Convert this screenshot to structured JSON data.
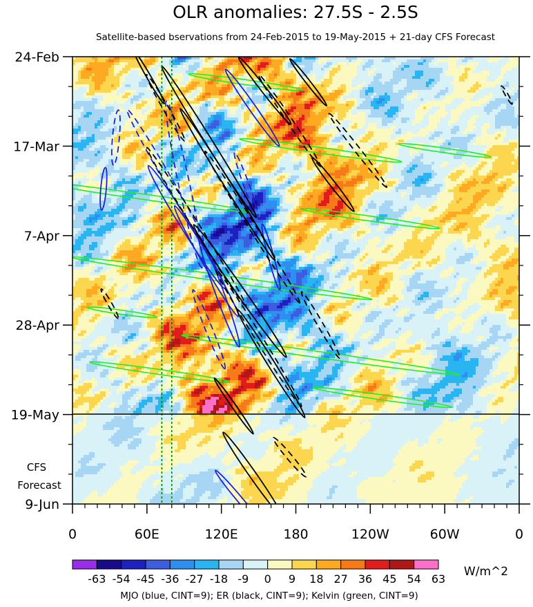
{
  "chart_data": {
    "type": "heatmap",
    "title": "OLR anomalies: 27.5S - 2.5S",
    "subtitle": "Satellite-based bservations from 24-Feb-2015 to 19-May-2015 + 21-day CFS Forecast",
    "x_tick_labels": [
      "0",
      "60E",
      "120E",
      "180",
      "120W",
      "60W",
      "0"
    ],
    "x_tick_lons": [
      0,
      60,
      120,
      180,
      240,
      300,
      360
    ],
    "xlim": [
      0,
      360
    ],
    "y_tick_labels": [
      "24-Feb",
      "17-Mar",
      "7-Apr",
      "28-Apr",
      "19-May",
      "9-Jun"
    ],
    "y_tick_days": [
      0,
      21,
      42,
      63,
      84,
      105
    ],
    "ylim": [
      0,
      105
    ],
    "observation_end_label": "19-May",
    "observation_end_day": 84,
    "forecast_label_line1": "CFS",
    "forecast_label_line2": "Forecast",
    "colorbar_levels": [
      -63,
      -54,
      -45,
      -36,
      -27,
      -18,
      -9,
      0,
      9,
      18,
      27,
      36,
      45,
      54,
      63
    ],
    "colorbar_labels": [
      "-63",
      "-54",
      "-45",
      "-36",
      "-27",
      "-18",
      "-9",
      "0",
      "9",
      "18",
      "27",
      "36",
      "45",
      "54",
      "63"
    ],
    "colorbar_colors": [
      "#9a2ee8",
      "#1a0a8c",
      "#1b22bf",
      "#3c5ddd",
      "#2e8ff0",
      "#29b5f2",
      "#a7d6f5",
      "#d9f2f8",
      "#fbf8c0",
      "#fdd64f",
      "#fdaa22",
      "#f77a1a",
      "#e21c1c",
      "#b01818",
      "#ff6fc8"
    ],
    "units": "W/m^2",
    "caption": "MJO (blue, CINT=9); ER (black, CINT=9); Kelvin (green, CINT=9)",
    "reference_lon_lines": [
      72,
      80
    ],
    "contour_colors": {
      "mjo": "#2020d0",
      "er": "#000000",
      "kelvin": "#22ee22",
      "reference": "#008000"
    },
    "features": {
      "mjo": [
        {
          "lon": 118,
          "day": 55,
          "angle": -20,
          "length": 28,
          "width": 6
        },
        {
          "lon": 92,
          "day": 40,
          "angle": -32,
          "length": 34,
          "width": 7
        },
        {
          "lon": 108,
          "day": 48,
          "angle": -30,
          "length": 30,
          "width": 6
        },
        {
          "lon": 145,
          "day": 12,
          "angle": -35,
          "length": 22,
          "width": 5
        },
        {
          "lon": 160,
          "day": 47,
          "angle": -15,
          "length": 16,
          "width": 4
        },
        {
          "lon": 25,
          "day": 31,
          "angle": 5,
          "length": 10,
          "width": 4
        },
        {
          "lon": 135,
          "day": 104,
          "angle": -40,
          "length": 18,
          "width": 4
        }
      ],
      "mjo_dashed": [
        {
          "lon": 90,
          "day": 30,
          "angle": -12,
          "length": 40,
          "width": 8
        },
        {
          "lon": 75,
          "day": 28,
          "angle": -30,
          "length": 36,
          "width": 6
        },
        {
          "lon": 110,
          "day": 64,
          "angle": -22,
          "length": 20,
          "width": 5
        },
        {
          "lon": 35,
          "day": 19,
          "angle": 5,
          "length": 13,
          "width": 5
        },
        {
          "lon": 140,
          "day": 30,
          "angle": -20,
          "length": 16,
          "width": 4
        }
      ],
      "er": [
        {
          "lon": 110,
          "day": 20,
          "angle": -32,
          "length": 42,
          "width": 5
        },
        {
          "lon": 125,
          "day": 30,
          "angle": -32,
          "length": 42,
          "width": 5
        },
        {
          "lon": 135,
          "day": 55,
          "angle": -35,
          "length": 38,
          "width": 6
        },
        {
          "lon": 160,
          "day": 72,
          "angle": -32,
          "length": 30,
          "width": 5
        },
        {
          "lon": 210,
          "day": 30,
          "angle": -38,
          "length": 16,
          "width": 4
        },
        {
          "lon": 155,
          "day": 8,
          "angle": -38,
          "length": 20,
          "width": 4
        },
        {
          "lon": 190,
          "day": 6,
          "angle": -38,
          "length": 14,
          "width": 3
        },
        {
          "lon": 145,
          "day": 98,
          "angle": -35,
          "length": 24,
          "width": 5
        },
        {
          "lon": 62,
          "day": 5,
          "angle": -30,
          "length": 14,
          "width": 3
        },
        {
          "lon": 130,
          "day": 82,
          "angle": -35,
          "length": 16,
          "width": 3
        }
      ],
      "er_dashed": [
        {
          "lon": 100,
          "day": 40,
          "angle": -32,
          "length": 44,
          "width": 5
        },
        {
          "lon": 145,
          "day": 40,
          "angle": -32,
          "length": 42,
          "width": 5
        },
        {
          "lon": 230,
          "day": 22,
          "angle": -38,
          "length": 22,
          "width": 4
        },
        {
          "lon": 175,
          "day": 15,
          "angle": -34,
          "length": 26,
          "width": 4
        },
        {
          "lon": 150,
          "day": 66,
          "angle": -32,
          "length": 38,
          "width": 5
        },
        {
          "lon": 200,
          "day": 63,
          "angle": -30,
          "length": 18,
          "width": 4
        },
        {
          "lon": 175,
          "day": 94,
          "angle": -40,
          "length": 12,
          "width": 4
        },
        {
          "lon": 75,
          "day": 12,
          "angle": -30,
          "length": 18,
          "width": 4
        },
        {
          "lon": 30,
          "day": 58,
          "angle": -30,
          "length": 8,
          "width": 3
        },
        {
          "lon": 350,
          "day": 9,
          "angle": -30,
          "length": 5,
          "width": 2
        }
      ],
      "kelvin": [
        {
          "lon": 140,
          "day": 6,
          "angle": 8,
          "length": 50,
          "width": 1.2
        },
        {
          "lon": 200,
          "day": 22,
          "angle": 8,
          "length": 70,
          "width": 1.4
        },
        {
          "lon": 60,
          "day": 33,
          "angle": 8,
          "length": 90,
          "width": 1.3
        },
        {
          "lon": 240,
          "day": 38,
          "angle": 8,
          "length": 60,
          "width": 1.2
        },
        {
          "lon": 120,
          "day": 52,
          "angle": 8,
          "length": 130,
          "width": 1.5
        },
        {
          "lon": 200,
          "day": 70,
          "angle": 8,
          "length": 120,
          "width": 1.5
        },
        {
          "lon": 70,
          "day": 74,
          "angle": 8,
          "length": 60,
          "width": 1.2
        },
        {
          "lon": 300,
          "day": 22,
          "angle": 8,
          "length": 40,
          "width": 1.1
        },
        {
          "lon": 250,
          "day": 80,
          "angle": 8,
          "length": 60,
          "width": 1.2
        },
        {
          "lon": 40,
          "day": 60,
          "angle": 8,
          "length": 30,
          "width": 1.0
        }
      ]
    }
  }
}
